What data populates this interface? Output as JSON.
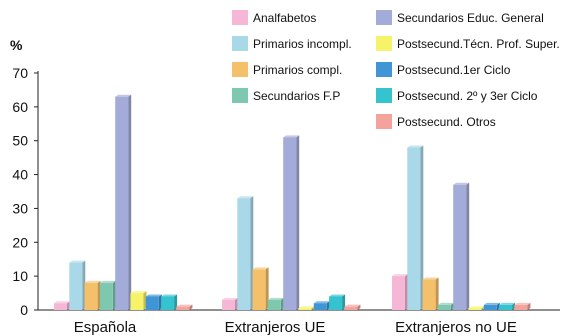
{
  "chart_data": {
    "type": "bar",
    "ylabel": "%",
    "ylim": [
      0,
      70
    ],
    "yticks": [
      0,
      10,
      20,
      30,
      40,
      50,
      60,
      70
    ],
    "categories": [
      "Española",
      "Extranjeros UE",
      "Extranjeros no UE"
    ],
    "legend_position": "top-right",
    "series": [
      {
        "name": "Analfabetos",
        "color": "#f6b6d6",
        "values": [
          2,
          3,
          10
        ]
      },
      {
        "name": "Primarios incompl.",
        "color": "#a9d8e8",
        "values": [
          14,
          33,
          48
        ]
      },
      {
        "name": "Primarios compl.",
        "color": "#f4c06a",
        "values": [
          8,
          12,
          9
        ]
      },
      {
        "name": "Secundarios F.P",
        "color": "#7fc8b0",
        "values": [
          8,
          3,
          1.5
        ]
      },
      {
        "name": "Secundarios Educ. General",
        "color": "#a3abd8",
        "values": [
          63,
          51,
          37
        ]
      },
      {
        "name": "Postsecund.Técn. Prof. Super.",
        "color": "#f6f36a",
        "values": [
          5,
          0.5,
          0.5
        ]
      },
      {
        "name": "Postsecund.1er Ciclo",
        "color": "#3f95d6",
        "values": [
          4,
          2,
          1.5
        ]
      },
      {
        "name": "Postsecund. 2º y 3er Ciclo",
        "color": "#34c3cf",
        "values": [
          4,
          4,
          1.5
        ]
      },
      {
        "name": "Postsecund. Otros",
        "color": "#f4a29c",
        "values": [
          1,
          1,
          1.5
        ]
      }
    ]
  }
}
